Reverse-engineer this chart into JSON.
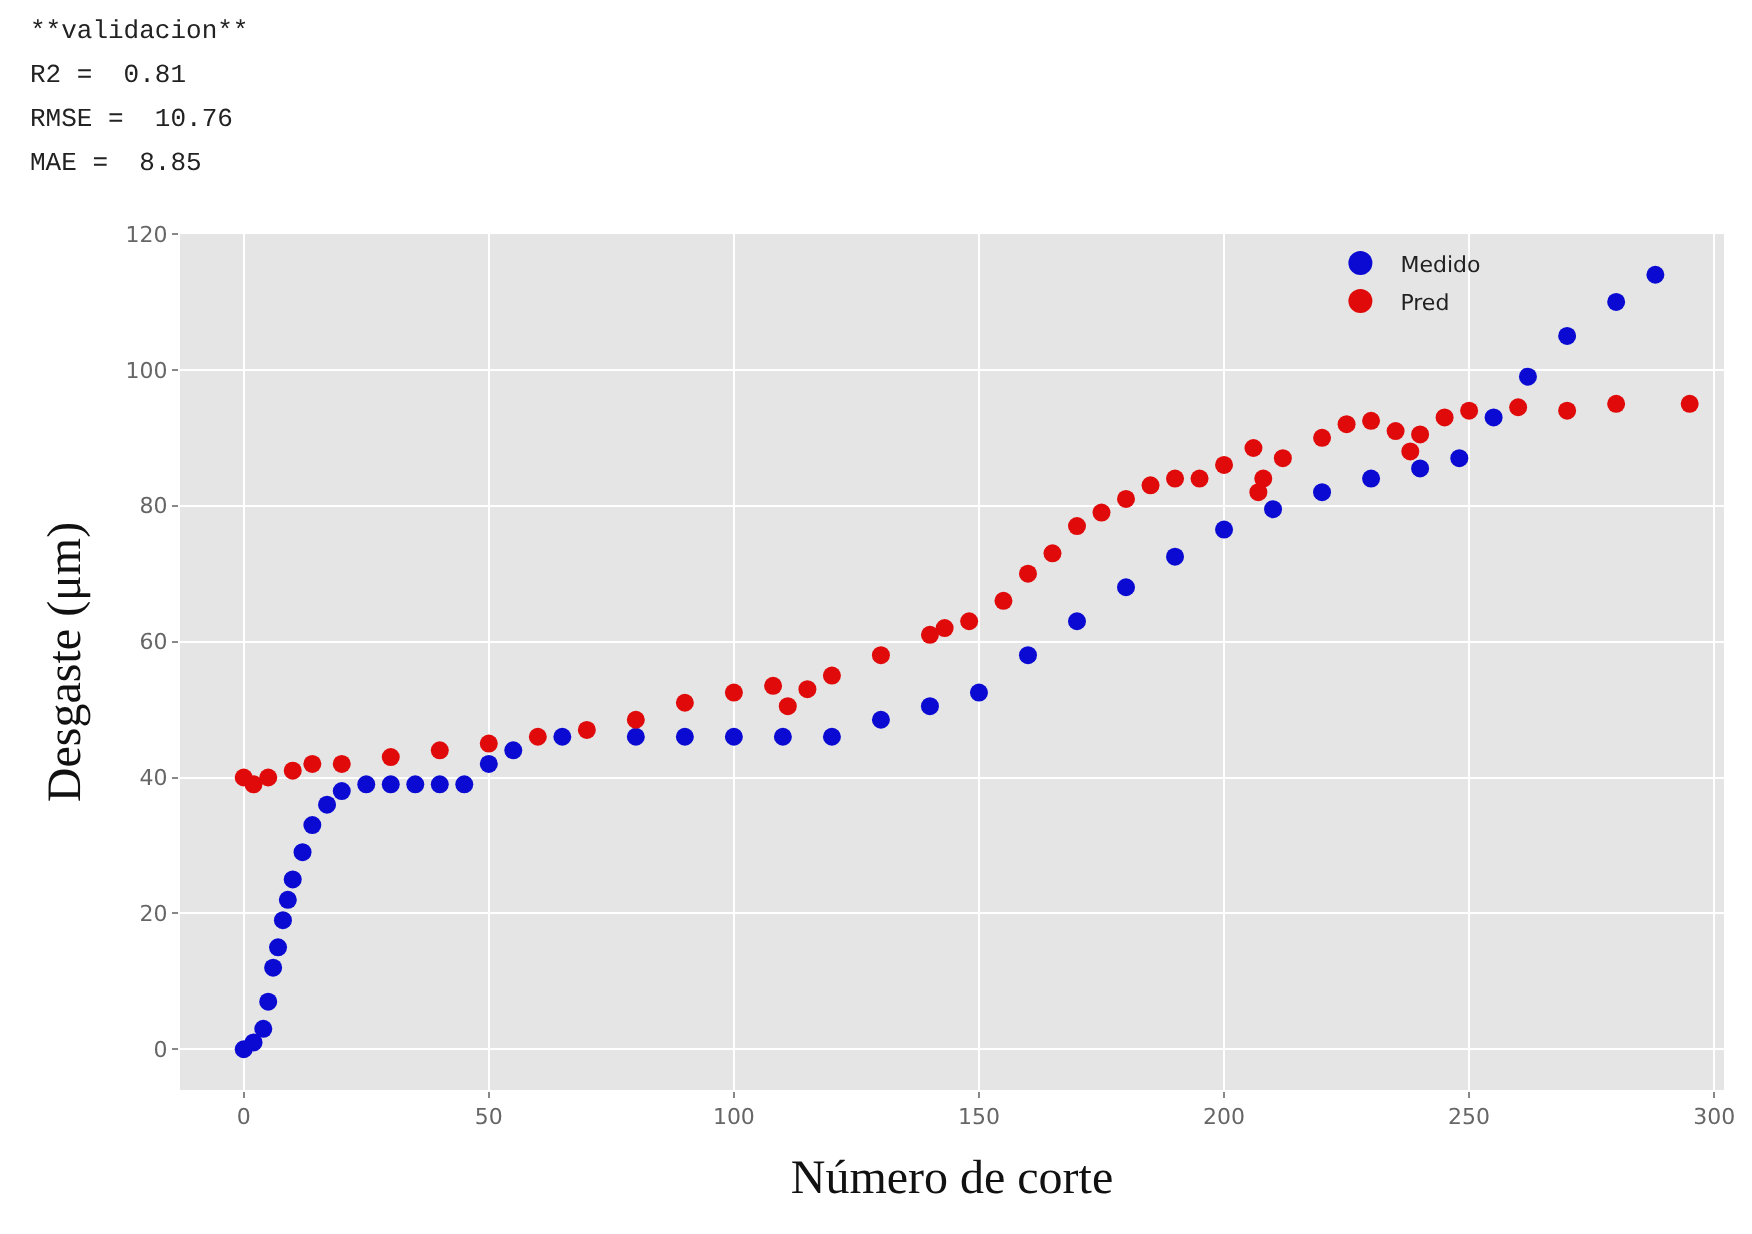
{
  "chart_data": {
    "type": "scatter",
    "annotations": [
      "**validacion**",
      "R2 =  0.81",
      "RMSE =  10.76",
      "MAE =  8.85"
    ],
    "xlabel": "Número de corte",
    "ylabel": "Desgaste (μm)",
    "xlim": [
      -13,
      302
    ],
    "ylim": [
      -6,
      120
    ],
    "xticks": [
      0,
      50,
      100,
      150,
      200,
      250,
      300
    ],
    "yticks": [
      0,
      20,
      40,
      60,
      80,
      100,
      120
    ],
    "grid": true,
    "legend": "top right",
    "marker": "circle",
    "series": [
      {
        "name": "Medido",
        "color": "#0a0ad2",
        "x": [
          0,
          2,
          4,
          5,
          6,
          7,
          8,
          9,
          10,
          12,
          14,
          17,
          20,
          25,
          30,
          35,
          40,
          45,
          50,
          55,
          65,
          80,
          90,
          100,
          110,
          120,
          130,
          140,
          150,
          160,
          170,
          180,
          190,
          200,
          210,
          220,
          230,
          240,
          248,
          255,
          262,
          270,
          280,
          288
        ],
        "values": [
          0,
          1,
          3,
          7,
          12,
          15,
          19,
          22,
          25,
          29,
          33,
          36,
          38,
          39,
          39,
          39,
          39,
          39,
          42,
          44,
          46,
          46,
          46,
          46,
          46,
          46,
          48.5,
          50.5,
          52.5,
          58,
          63,
          68,
          72.5,
          76.5,
          79.5,
          82,
          84,
          85.5,
          87,
          93,
          99,
          105,
          110,
          114
        ]
      },
      {
        "name": "Pred",
        "color": "#e00a0a",
        "x": [
          0,
          2,
          5,
          10,
          14,
          20,
          30,
          40,
          50,
          60,
          70,
          80,
          90,
          100,
          108,
          111,
          115,
          120,
          130,
          140,
          143,
          148,
          155,
          160,
          165,
          170,
          175,
          180,
          185,
          190,
          195,
          200,
          206,
          207,
          208,
          212,
          220,
          225,
          230,
          235,
          238,
          240,
          245,
          250,
          260,
          270,
          280,
          295
        ],
        "values": [
          40,
          39,
          40,
          41,
          42,
          42,
          43,
          44,
          45,
          46,
          47,
          48.5,
          51,
          52.5,
          53.5,
          50.5,
          53,
          55,
          58,
          61,
          62,
          63,
          66,
          70,
          73,
          77,
          79,
          81,
          83,
          84,
          84,
          86,
          88.5,
          82,
          84,
          87,
          90,
          92,
          92.5,
          91,
          88,
          90.5,
          93,
          94,
          94.5,
          94,
          95,
          95
        ]
      }
    ]
  }
}
